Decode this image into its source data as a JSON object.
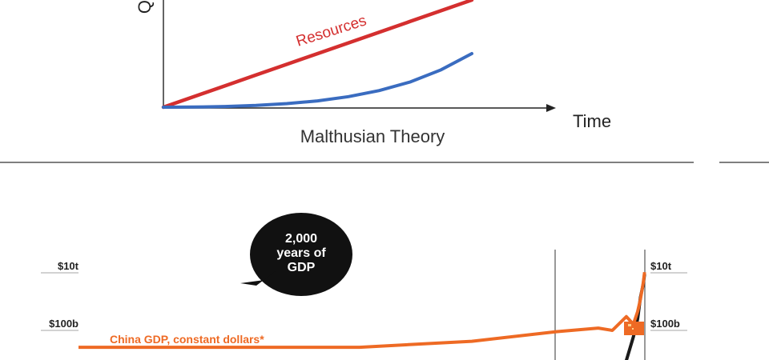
{
  "chart_data": [
    {
      "type": "line",
      "title": "Malthusian Theory",
      "xlabel": "Time",
      "ylabel": "Q",
      "x": [
        0,
        1,
        2,
        3,
        4,
        5,
        6,
        7,
        8,
        9,
        10
      ],
      "series": [
        {
          "name": "Resources",
          "kind": "linear",
          "values": [
            0,
            1.32,
            2.64,
            3.96,
            5.28,
            6.6,
            7.92,
            9.24,
            10.56,
            11.88,
            13.2
          ]
        },
        {
          "name": "",
          "kind": "exponential",
          "values": [
            0,
            0.02,
            0.09,
            0.22,
            0.44,
            0.78,
            1.3,
            2.05,
            3.1,
            4.6,
            6.6
          ]
        }
      ],
      "xlim": [
        0,
        10
      ],
      "ylim": [
        0,
        13.2
      ],
      "colors": {
        "resources": "#d42f2f",
        "population": "#3a6cc0",
        "axis": "#222222"
      },
      "grid": false,
      "legend": "none"
    },
    {
      "type": "line",
      "title": "",
      "scale": "log",
      "ytick_labels_left": [
        "$10t",
        "$100b"
      ],
      "ytick_labels_right": [
        "$10t",
        "$100b"
      ],
      "yticks_values": [
        10000,
        100
      ],
      "callout": {
        "line1": "2,000",
        "line2": "years of",
        "line3": "GDP"
      },
      "x": [
        0,
        400,
        700,
        1000,
        1400,
        1700,
        1850,
        1900,
        1950,
        1975,
        1990,
        2000,
        2010,
        2015
      ],
      "series": [
        {
          "name": "China GDP, constant dollars*",
          "values": [
            26,
            26,
            26,
            26,
            42,
            90,
            120,
            100,
            300,
            165,
            450,
            1200,
            4500,
            10500
          ]
        },
        {
          "name": "",
          "values": [
            null,
            null,
            null,
            null,
            null,
            null,
            null,
            null,
            9,
            60,
            250,
            1400,
            4000,
            9000
          ]
        }
      ],
      "xlim": [
        0,
        2030
      ],
      "ylim": [
        8,
        20000
      ],
      "colors": {
        "china": "#ee6a24",
        "secondary": "#1a1a1a",
        "bubble": "#111111",
        "marker": "#ee6a24"
      }
    }
  ]
}
